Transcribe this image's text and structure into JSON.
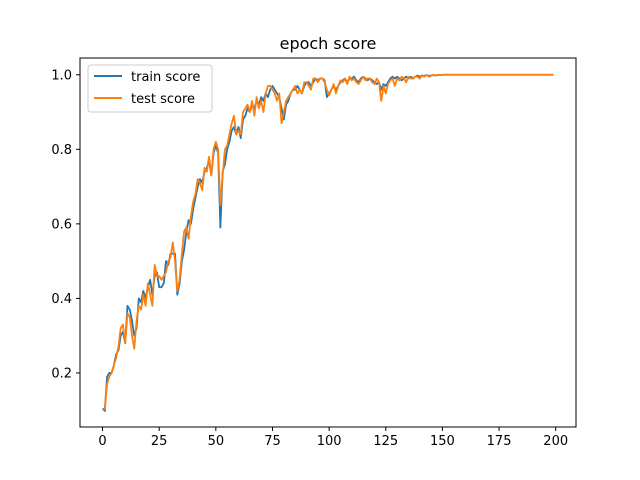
{
  "chart_data": {
    "type": "line",
    "title": "epoch score",
    "xlabel": "",
    "ylabel": "",
    "xlim": [
      -9.95,
      208.95
    ],
    "ylim": [
      0.055,
      1.045
    ],
    "x_ticks": [
      0,
      25,
      50,
      75,
      100,
      125,
      150,
      175,
      200
    ],
    "y_ticks": [
      0.2,
      0.4,
      0.6,
      0.8,
      1.0
    ],
    "x_tick_labels": [
      "0",
      "25",
      "50",
      "75",
      "100",
      "125",
      "150",
      "175",
      "200"
    ],
    "y_tick_labels": [
      "0.2",
      "0.4",
      "0.6",
      "0.8",
      "1.0"
    ],
    "grid": false,
    "legend_position": "upper-left",
    "series": [
      {
        "name": "train score",
        "color": "#1f77b4",
        "points": [
          [
            0,
            0.105
          ],
          [
            1,
            0.098
          ],
          [
            2,
            0.19
          ],
          [
            3,
            0.2
          ],
          [
            4,
            0.2
          ],
          [
            5,
            0.22
          ],
          [
            6,
            0.25
          ],
          [
            7,
            0.26
          ],
          [
            8,
            0.3
          ],
          [
            9,
            0.31
          ],
          [
            10,
            0.28
          ],
          [
            11,
            0.38
          ],
          [
            12,
            0.37
          ],
          [
            13,
            0.34
          ],
          [
            14,
            0.3
          ],
          [
            15,
            0.32
          ],
          [
            16,
            0.4
          ],
          [
            17,
            0.39
          ],
          [
            18,
            0.42
          ],
          [
            19,
            0.4
          ],
          [
            20,
            0.43
          ],
          [
            21,
            0.45
          ],
          [
            22,
            0.41
          ],
          [
            23,
            0.46
          ],
          [
            24,
            0.47
          ],
          [
            25,
            0.43
          ],
          [
            26,
            0.43
          ],
          [
            27,
            0.44
          ],
          [
            28,
            0.5
          ],
          [
            29,
            0.49
          ],
          [
            30,
            0.52
          ],
          [
            31,
            0.52
          ],
          [
            32,
            0.52
          ],
          [
            33,
            0.41
          ],
          [
            34,
            0.44
          ],
          [
            35,
            0.5
          ],
          [
            36,
            0.53
          ],
          [
            37,
            0.58
          ],
          [
            38,
            0.61
          ],
          [
            39,
            0.6
          ],
          [
            40,
            0.64
          ],
          [
            41,
            0.67
          ],
          [
            42,
            0.7
          ],
          [
            43,
            0.72
          ],
          [
            44,
            0.71
          ],
          [
            45,
            0.74
          ],
          [
            46,
            0.75
          ],
          [
            47,
            0.77
          ],
          [
            48,
            0.73
          ],
          [
            49,
            0.79
          ],
          [
            50,
            0.81
          ],
          [
            51,
            0.79
          ],
          [
            52,
            0.59
          ],
          [
            53,
            0.74
          ],
          [
            54,
            0.76
          ],
          [
            55,
            0.8
          ],
          [
            56,
            0.82
          ],
          [
            57,
            0.85
          ],
          [
            58,
            0.86
          ],
          [
            59,
            0.84
          ],
          [
            60,
            0.86
          ],
          [
            61,
            0.83
          ],
          [
            62,
            0.88
          ],
          [
            63,
            0.89
          ],
          [
            64,
            0.91
          ],
          [
            65,
            0.9
          ],
          [
            66,
            0.92
          ],
          [
            67,
            0.91
          ],
          [
            68,
            0.93
          ],
          [
            69,
            0.92
          ],
          [
            70,
            0.94
          ],
          [
            71,
            0.93
          ],
          [
            72,
            0.95
          ],
          [
            73,
            0.94
          ],
          [
            74,
            0.96
          ],
          [
            75,
            0.97
          ],
          [
            76,
            0.96
          ],
          [
            77,
            0.95
          ],
          [
            78,
            0.94
          ],
          [
            79,
            0.91
          ],
          [
            80,
            0.88
          ],
          [
            81,
            0.92
          ],
          [
            82,
            0.93
          ],
          [
            83,
            0.95
          ],
          [
            84,
            0.96
          ],
          [
            85,
            0.96
          ],
          [
            86,
            0.97
          ],
          [
            87,
            0.96
          ],
          [
            88,
            0.95
          ],
          [
            89,
            0.97
          ],
          [
            90,
            0.98
          ],
          [
            91,
            0.98
          ],
          [
            92,
            0.97
          ],
          [
            93,
            0.98
          ],
          [
            94,
            0.99
          ],
          [
            95,
            0.985
          ],
          [
            96,
            0.99
          ],
          [
            97,
            0.99
          ],
          [
            98,
            0.985
          ],
          [
            99,
            0.94
          ],
          [
            100,
            0.95
          ],
          [
            101,
            0.96
          ],
          [
            102,
            0.97
          ],
          [
            103,
            0.96
          ],
          [
            104,
            0.97
          ],
          [
            105,
            0.98
          ],
          [
            106,
            0.985
          ],
          [
            107,
            0.99
          ],
          [
            108,
            0.98
          ],
          [
            109,
            0.99
          ],
          [
            110,
            0.99
          ],
          [
            111,
            0.995
          ],
          [
            112,
            0.985
          ],
          [
            113,
            0.98
          ],
          [
            114,
            0.99
          ],
          [
            115,
            0.995
          ],
          [
            116,
            0.99
          ],
          [
            117,
            0.985
          ],
          [
            118,
            0.99
          ],
          [
            119,
            0.985
          ],
          [
            120,
            0.98
          ],
          [
            121,
            0.975
          ],
          [
            122,
            0.98
          ],
          [
            123,
            0.96
          ],
          [
            124,
            0.975
          ],
          [
            125,
            0.97
          ],
          [
            126,
            0.98
          ],
          [
            127,
            0.99
          ],
          [
            128,
            0.995
          ],
          [
            129,
            0.99
          ],
          [
            130,
            0.995
          ],
          [
            131,
            0.99
          ],
          [
            132,
            0.985
          ],
          [
            133,
            0.99
          ],
          [
            134,
            0.995
          ],
          [
            135,
            0.99
          ],
          [
            136,
            0.995
          ],
          [
            137,
            0.99
          ],
          [
            138,
            0.995
          ],
          [
            139,
            0.998
          ],
          [
            140,
            0.995
          ],
          [
            141,
            0.998
          ],
          [
            142,
            0.997
          ],
          [
            143,
            0.999
          ],
          [
            144,
            0.997
          ],
          [
            145,
            0.998
          ],
          [
            146,
            0.999
          ],
          [
            147,
            0.998
          ],
          [
            148,
            0.999
          ],
          [
            149,
            0.999
          ],
          [
            150,
            1.0
          ],
          [
            155,
            1.0
          ],
          [
            160,
            1.0
          ],
          [
            165,
            1.0
          ],
          [
            170,
            1.0
          ],
          [
            175,
            1.0
          ],
          [
            180,
            1.0
          ],
          [
            185,
            1.0
          ],
          [
            190,
            1.0
          ],
          [
            195,
            1.0
          ],
          [
            199,
            1.0
          ]
        ]
      },
      {
        "name": "test score",
        "color": "#ff7f0e",
        "points": [
          [
            0,
            0.1
          ],
          [
            1,
            0.105
          ],
          [
            2,
            0.17
          ],
          [
            3,
            0.19
          ],
          [
            4,
            0.2
          ],
          [
            5,
            0.22
          ],
          [
            6,
            0.24
          ],
          [
            7,
            0.27
          ],
          [
            8,
            0.32
          ],
          [
            9,
            0.33
          ],
          [
            10,
            0.28
          ],
          [
            11,
            0.36
          ],
          [
            12,
            0.35
          ],
          [
            13,
            0.3
          ],
          [
            14,
            0.265
          ],
          [
            15,
            0.34
          ],
          [
            16,
            0.38
          ],
          [
            17,
            0.37
          ],
          [
            18,
            0.41
          ],
          [
            19,
            0.38
          ],
          [
            20,
            0.44
          ],
          [
            21,
            0.41
          ],
          [
            22,
            0.38
          ],
          [
            23,
            0.49
          ],
          [
            24,
            0.46
          ],
          [
            25,
            0.46
          ],
          [
            26,
            0.45
          ],
          [
            27,
            0.46
          ],
          [
            28,
            0.47
          ],
          [
            29,
            0.5
          ],
          [
            30,
            0.51
          ],
          [
            31,
            0.55
          ],
          [
            32,
            0.5
          ],
          [
            33,
            0.42
          ],
          [
            34,
            0.45
          ],
          [
            35,
            0.52
          ],
          [
            36,
            0.58
          ],
          [
            37,
            0.59
          ],
          [
            38,
            0.56
          ],
          [
            39,
            0.62
          ],
          [
            40,
            0.66
          ],
          [
            41,
            0.68
          ],
          [
            42,
            0.72
          ],
          [
            43,
            0.71
          ],
          [
            44,
            0.69
          ],
          [
            45,
            0.75
          ],
          [
            46,
            0.74
          ],
          [
            47,
            0.78
          ],
          [
            48,
            0.73
          ],
          [
            49,
            0.8
          ],
          [
            50,
            0.82
          ],
          [
            51,
            0.8
          ],
          [
            52,
            0.65
          ],
          [
            53,
            0.73
          ],
          [
            54,
            0.8
          ],
          [
            55,
            0.81
          ],
          [
            56,
            0.84
          ],
          [
            57,
            0.87
          ],
          [
            58,
            0.89
          ],
          [
            59,
            0.84
          ],
          [
            60,
            0.85
          ],
          [
            61,
            0.84
          ],
          [
            62,
            0.9
          ],
          [
            63,
            0.91
          ],
          [
            64,
            0.92
          ],
          [
            65,
            0.9
          ],
          [
            66,
            0.93
          ],
          [
            67,
            0.89
          ],
          [
            68,
            0.94
          ],
          [
            69,
            0.91
          ],
          [
            70,
            0.93
          ],
          [
            71,
            0.9
          ],
          [
            72,
            0.95
          ],
          [
            73,
            0.97
          ],
          [
            74,
            0.97
          ],
          [
            75,
            0.96
          ],
          [
            76,
            0.95
          ],
          [
            77,
            0.93
          ],
          [
            78,
            0.95
          ],
          [
            79,
            0.87
          ],
          [
            80,
            0.9
          ],
          [
            81,
            0.93
          ],
          [
            82,
            0.94
          ],
          [
            83,
            0.95
          ],
          [
            84,
            0.96
          ],
          [
            85,
            0.97
          ],
          [
            86,
            0.95
          ],
          [
            87,
            0.96
          ],
          [
            88,
            0.95
          ],
          [
            89,
            0.98
          ],
          [
            90,
            0.98
          ],
          [
            91,
            0.97
          ],
          [
            92,
            0.96
          ],
          [
            93,
            0.99
          ],
          [
            94,
            0.99
          ],
          [
            95,
            0.98
          ],
          [
            96,
            0.99
          ],
          [
            97,
            0.99
          ],
          [
            98,
            0.98
          ],
          [
            99,
            0.96
          ],
          [
            100,
            0.945
          ],
          [
            101,
            0.96
          ],
          [
            102,
            0.975
          ],
          [
            103,
            0.95
          ],
          [
            104,
            0.97
          ],
          [
            105,
            0.985
          ],
          [
            106,
            0.98
          ],
          [
            107,
            0.99
          ],
          [
            108,
            0.975
          ],
          [
            109,
            0.995
          ],
          [
            110,
            0.985
          ],
          [
            111,
            0.99
          ],
          [
            112,
            0.98
          ],
          [
            113,
            0.975
          ],
          [
            114,
            0.985
          ],
          [
            115,
            0.995
          ],
          [
            116,
            0.985
          ],
          [
            117,
            0.99
          ],
          [
            118,
            0.99
          ],
          [
            119,
            0.98
          ],
          [
            120,
            0.975
          ],
          [
            121,
            0.99
          ],
          [
            122,
            0.98
          ],
          [
            123,
            0.93
          ],
          [
            124,
            0.97
          ],
          [
            125,
            0.95
          ],
          [
            126,
            0.975
          ],
          [
            127,
            0.985
          ],
          [
            128,
            0.99
          ],
          [
            129,
            0.97
          ],
          [
            130,
            0.99
          ],
          [
            131,
            0.985
          ],
          [
            132,
            0.995
          ],
          [
            133,
            0.99
          ],
          [
            134,
            0.98
          ],
          [
            135,
            0.995
          ],
          [
            136,
            0.99
          ],
          [
            137,
            0.99
          ],
          [
            138,
            0.995
          ],
          [
            139,
            0.995
          ],
          [
            140,
            0.99
          ],
          [
            141,
            0.998
          ],
          [
            142,
            0.995
          ],
          [
            143,
            1.0
          ],
          [
            144,
            0.995
          ],
          [
            145,
            0.997
          ],
          [
            146,
            1.0
          ],
          [
            147,
            0.998
          ],
          [
            148,
            1.0
          ],
          [
            149,
            0.999
          ],
          [
            150,
            1.0
          ],
          [
            155,
            1.0
          ],
          [
            160,
            1.0
          ],
          [
            165,
            1.0
          ],
          [
            170,
            1.0
          ],
          [
            175,
            1.0
          ],
          [
            180,
            1.0
          ],
          [
            185,
            1.0
          ],
          [
            190,
            1.0
          ],
          [
            195,
            1.0
          ],
          [
            199,
            1.0
          ]
        ]
      }
    ]
  }
}
